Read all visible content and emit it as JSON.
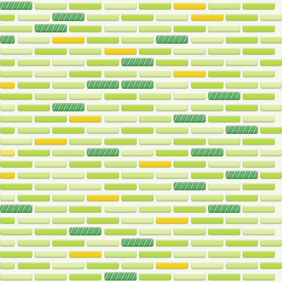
{
  "mosaic": {
    "colors": {
      "lime": "#b8dc4a",
      "light_green": "#cfe883",
      "pale_green": "#e0efa8",
      "yellow": "#f3d21f",
      "light_yellow": "#f2e36b",
      "iridescent_green": "#4aa25a"
    },
    "pattern": [
      [
        "iridescent_green",
        "light_green",
        "lime",
        "pale_green",
        "lime",
        "yellow",
        "light_green",
        "lime"
      ],
      [
        "lime",
        "pale_green",
        "iridescent_green",
        "light_green",
        "lime",
        "pale_green",
        "yellow",
        "lime",
        "pale_green"
      ],
      [
        "light_green",
        "iridescent_green",
        "lime",
        "pale_green",
        "light_green",
        "lime",
        "pale_green",
        "lime"
      ],
      [
        "iridescent_green",
        "pale_green",
        "yellow",
        "lime",
        "light_green",
        "iridescent_green",
        "pale_green",
        "lime",
        "light_green"
      ],
      [
        "pale_green",
        "lime",
        "light_green",
        "yellow",
        "lime",
        "pale_green",
        "light_green",
        "lime"
      ],
      [
        "lime",
        "light_green",
        "pale_green",
        "lime",
        "iridescent_green",
        "lime",
        "light_green",
        "pale_green",
        "lime"
      ],
      [
        "light_green",
        "pale_green",
        "lime",
        "light_green",
        "pale_green",
        "yellow",
        "lime",
        "light_green"
      ],
      [
        "yellow",
        "lime",
        "light_green",
        "iridescent_green",
        "iridescent_green",
        "pale_green",
        "lime",
        "light_green",
        "pale_green"
      ],
      [
        "lime",
        "light_green",
        "pale_green",
        "lime",
        "light_green",
        "pale_green",
        "iridescent_green",
        "lime"
      ],
      [
        "pale_green",
        "lime",
        "iridescent_green",
        "light_green",
        "lime",
        "pale_green",
        "light_green",
        "lime",
        "pale_green"
      ],
      [
        "light_green",
        "lime",
        "yellow",
        "pale_green",
        "light_green",
        "iridescent_green",
        "lime",
        "pale_green"
      ],
      [
        "lime",
        "light_green",
        "lime",
        "pale_green",
        "lime",
        "light_green",
        "pale_green",
        "iridescent_green",
        "lime"
      ],
      [
        "pale_green",
        "yellow",
        "light_green",
        "lime",
        "pale_green",
        "lime",
        "light_green",
        "lime"
      ],
      [
        "light_yellow",
        "lime",
        "light_green",
        "iridescent_green",
        "pale_green",
        "lime",
        "iridescent_green",
        "light_green",
        "pale_green"
      ],
      [
        "lime",
        "pale_green",
        "lime",
        "light_green",
        "yellow",
        "lime",
        "pale_green",
        "light_green"
      ],
      [
        "yellow",
        "light_green",
        "pale_green",
        "lime",
        "light_green",
        "pale_green",
        "lime",
        "iridescent_green",
        "lime"
      ],
      [
        "lime",
        "light_green",
        "pale_green",
        "lime",
        "light_green",
        "iridescent_green",
        "pale_green",
        "lime"
      ],
      [
        "pale_green",
        "lime",
        "light_green",
        "yellow",
        "lime",
        "pale_green",
        "light_green",
        "lime",
        "pale_green"
      ],
      [
        "iridescent_green",
        "light_green",
        "lime",
        "pale_green",
        "light_green",
        "lime",
        "iridescent_green",
        "light_green"
      ],
      [
        "lime",
        "pale_green",
        "light_green",
        "lime",
        "pale_green",
        "yellow",
        "lime",
        "light_green",
        "pale_green"
      ],
      [
        "light_green",
        "lime",
        "iridescent_green",
        "lime",
        "pale_green",
        "light_green",
        "lime",
        "pale_green"
      ],
      [
        "pale_green",
        "light_green",
        "lime",
        "pale_green",
        "iridescent_green",
        "lime",
        "light_green",
        "lime",
        "light_green"
      ],
      [
        "lime",
        "pale_green",
        "yellow",
        "light_green",
        "lime",
        "pale_green",
        "light_green",
        "lime"
      ],
      [
        "light_green",
        "lime",
        "pale_green",
        "lime",
        "light_green",
        "yellow",
        "pale_green",
        "light_green",
        "lime"
      ],
      [
        "pale_green",
        "light_green",
        "lime",
        "iridescent_green",
        "lime",
        "pale_green",
        "lime",
        "light_green"
      ]
    ]
  }
}
